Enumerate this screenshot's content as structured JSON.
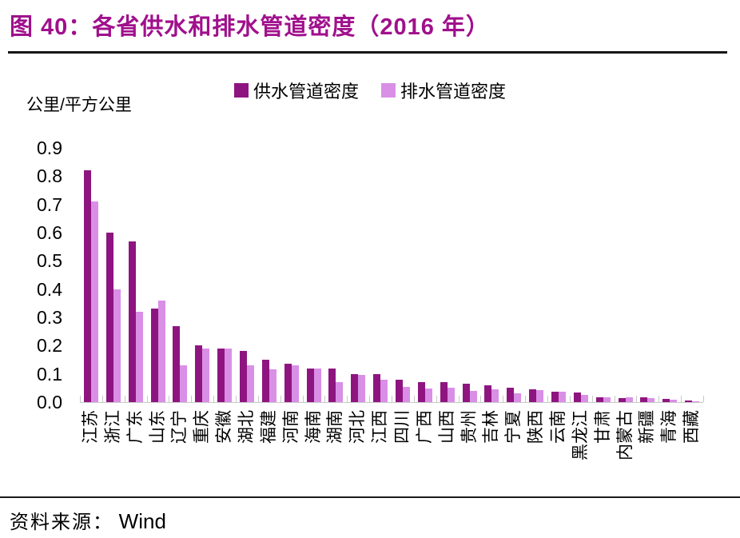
{
  "title": "图 40：各省供水和排水管道密度（2016 年）",
  "title_color": "#A0108C",
  "unit_label": "公里/平方公里",
  "source": {
    "prefix": "资料来源：",
    "name": "Wind"
  },
  "chart_data": {
    "type": "bar",
    "title": "各省供水和排水管道密度（2016年）",
    "ylabel": "公里/平方公里",
    "xlabel": "",
    "ylim": [
      0,
      0.9
    ],
    "ytick_labels": [
      "0.0",
      "0.1",
      "0.2",
      "0.3",
      "0.4",
      "0.5",
      "0.6",
      "0.7",
      "0.8",
      "0.9"
    ],
    "grid": false,
    "legend_position": "top",
    "axis_color": "#c8c8c8",
    "categories": [
      "江苏",
      "浙江",
      "广东",
      "山东",
      "辽宁",
      "重庆",
      "安徽",
      "湖北",
      "福建",
      "河南",
      "海南",
      "湖南",
      "河北",
      "江西",
      "四川",
      "广西",
      "山西",
      "贵州",
      "吉林",
      "宁夏",
      "陕西",
      "云南",
      "黑龙江",
      "甘肃",
      "内蒙古",
      "新疆",
      "青海",
      "西藏"
    ],
    "series": [
      {
        "name": "供水管道密度",
        "color": "#8E1580",
        "values": [
          0.82,
          0.6,
          0.57,
          0.33,
          0.27,
          0.2,
          0.19,
          0.18,
          0.15,
          0.135,
          0.12,
          0.12,
          0.1,
          0.1,
          0.08,
          0.07,
          0.07,
          0.065,
          0.06,
          0.05,
          0.045,
          0.036,
          0.035,
          0.016,
          0.015,
          0.016,
          0.011,
          0.005
        ]
      },
      {
        "name": "排水管道密度",
        "color": "#D98FE6",
        "values": [
          0.71,
          0.4,
          0.32,
          0.36,
          0.13,
          0.19,
          0.19,
          0.13,
          0.115,
          0.13,
          0.12,
          0.07,
          0.095,
          0.08,
          0.055,
          0.048,
          0.05,
          0.04,
          0.045,
          0.03,
          0.044,
          0.038,
          0.027,
          0.018,
          0.018,
          0.014,
          0.009,
          0.004
        ]
      }
    ]
  }
}
